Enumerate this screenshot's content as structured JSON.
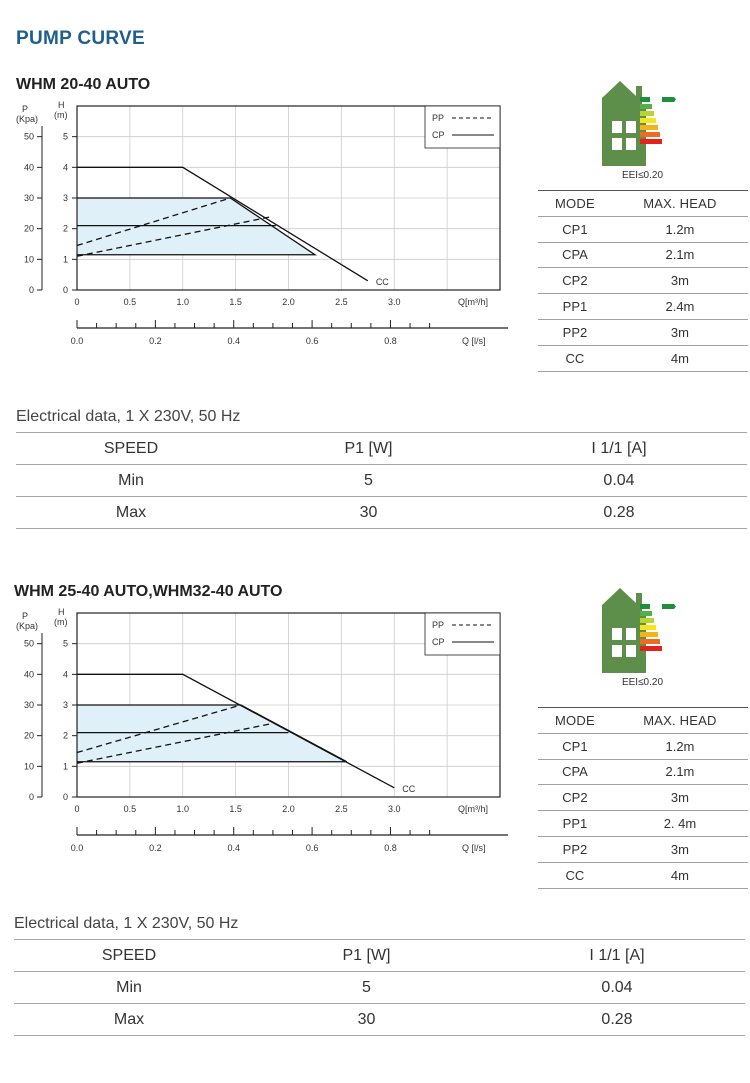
{
  "page_title": "PUMP CURVE",
  "sections": [
    {
      "title": "WHM 20-40 AUTO",
      "eei": "EEI≤0.20",
      "mode_table": {
        "headers": [
          "MODE",
          "MAX. HEAD"
        ],
        "rows": [
          [
            "CP1",
            "1.2m"
          ],
          [
            "CPA",
            "2.1m"
          ],
          [
            "CP2",
            "3m"
          ],
          [
            "PP1",
            "2.4m"
          ],
          [
            "PP2",
            "3m"
          ],
          [
            "CC",
            "4m"
          ]
        ]
      },
      "electrical_caption": "Electrical data, 1 X 230V, 50 Hz",
      "electrical_table": {
        "headers": [
          "SPEED",
          "P1 [W]",
          "I 1/1 [A]"
        ],
        "rows": [
          [
            "Min",
            "5",
            "0.04"
          ],
          [
            "Max",
            "30",
            "0.28"
          ]
        ]
      },
      "chart_labels": {
        "p_axis": "P",
        "p_unit": "(Kpa)",
        "h_axis": "H",
        "h_unit": "(m)",
        "q_m3h": "Q[m³/h]",
        "q_ls": "Q [l/s]",
        "legend_pp": "PP",
        "legend_cp": "CP",
        "curve_cc": "CC"
      }
    },
    {
      "title": "WHM 25-40 AUTO,WHM32-40 AUTO",
      "eei": "EEI≤0.20",
      "mode_table": {
        "headers": [
          "MODE",
          "MAX. HEAD"
        ],
        "rows": [
          [
            "CP1",
            "1.2m"
          ],
          [
            "CPA",
            "2.1m"
          ],
          [
            "CP2",
            "3m"
          ],
          [
            "PP1",
            "2. 4m"
          ],
          [
            "PP2",
            "3m"
          ],
          [
            "CC",
            "4m"
          ]
        ]
      },
      "electrical_caption": "Electrical data, 1 X 230V, 50 Hz",
      "electrical_table": {
        "headers": [
          "SPEED",
          "P1 [W]",
          "I 1/1 [A]"
        ],
        "rows": [
          [
            "Min",
            "5",
            "0.04"
          ],
          [
            "Max",
            "30",
            "0.28"
          ]
        ]
      },
      "chart_labels": {
        "p_axis": "P",
        "p_unit": "(Kpa)",
        "h_axis": "H",
        "h_unit": "(m)",
        "q_m3h": "Q[m³/h]",
        "q_ls": "Q [l/s]",
        "legend_pp": "PP",
        "legend_cp": "CP",
        "curve_cc": "CC"
      }
    }
  ],
  "chart_data": [
    {
      "type": "line",
      "x_unit": "m³/h",
      "y_unit": "m",
      "xlim": [
        0,
        4
      ],
      "ylim": [
        0,
        6
      ],
      "x_ticks": [
        "0",
        "0.5",
        "1.0",
        "1.5",
        "2.0",
        "2.5",
        "3.0"
      ],
      "h_ticks": [
        "0",
        "1",
        "2",
        "3",
        "4",
        "5"
      ],
      "p_ticks": [
        "0",
        "10",
        "20",
        "30",
        "40",
        "50"
      ],
      "ls_ticks": [
        "0.0",
        "0.2",
        "0.4",
        "0.6",
        "0.8"
      ],
      "series": [
        {
          "name": "CC",
          "style": "solid",
          "points": [
            [
              0,
              4
            ],
            [
              1.0,
              4
            ],
            [
              2.75,
              0.3
            ]
          ]
        },
        {
          "name": "CP",
          "style": "solid",
          "points": [
            [
              0,
              3
            ],
            [
              1.45,
              3
            ],
            [
              2.25,
              1.15
            ],
            [
              0,
              1.15
            ]
          ]
        },
        {
          "name": "CP",
          "style": "solid",
          "points": [
            [
              0,
              2.1
            ],
            [
              1.88,
              2.1
            ]
          ]
        },
        {
          "name": "PP",
          "style": "dashed",
          "points": [
            [
              0,
              1.45
            ],
            [
              1.45,
              3
            ]
          ]
        },
        {
          "name": "PP",
          "style": "dashed",
          "points": [
            [
              0,
              1.1
            ],
            [
              1.85,
              2.4
            ]
          ]
        }
      ]
    },
    {
      "type": "line",
      "x_unit": "m³/h",
      "y_unit": "m",
      "xlim": [
        0,
        4
      ],
      "ylim": [
        0,
        6
      ],
      "x_ticks": [
        "0",
        "0.5",
        "1.0",
        "1.5",
        "2.0",
        "2.5",
        "3.0"
      ],
      "h_ticks": [
        "0",
        "1",
        "2",
        "3",
        "4",
        "5"
      ],
      "p_ticks": [
        "0",
        "10",
        "20",
        "30",
        "40",
        "50"
      ],
      "ls_ticks": [
        "0.0",
        "0.2",
        "0.4",
        "0.6",
        "0.8"
      ],
      "series": [
        {
          "name": "CC",
          "style": "solid",
          "points": [
            [
              0,
              4
            ],
            [
              1.0,
              4
            ],
            [
              3.0,
              0.3
            ]
          ]
        },
        {
          "name": "CP",
          "style": "solid",
          "points": [
            [
              0,
              3
            ],
            [
              1.55,
              3
            ],
            [
              2.55,
              1.15
            ],
            [
              0,
              1.15
            ]
          ]
        },
        {
          "name": "CP",
          "style": "solid",
          "points": [
            [
              0,
              2.1
            ],
            [
              2.0,
              2.1
            ]
          ]
        },
        {
          "name": "PP",
          "style": "dashed",
          "points": [
            [
              0,
              1.45
            ],
            [
              1.55,
              3
            ]
          ]
        },
        {
          "name": "PP",
          "style": "dashed",
          "points": [
            [
              0,
              1.1
            ],
            [
              1.85,
              2.4
            ]
          ]
        }
      ]
    }
  ],
  "colors": {
    "title_blue": "#1f5f8f",
    "band_fill": "#dff0f9",
    "house_green": "#5d8f4a"
  }
}
